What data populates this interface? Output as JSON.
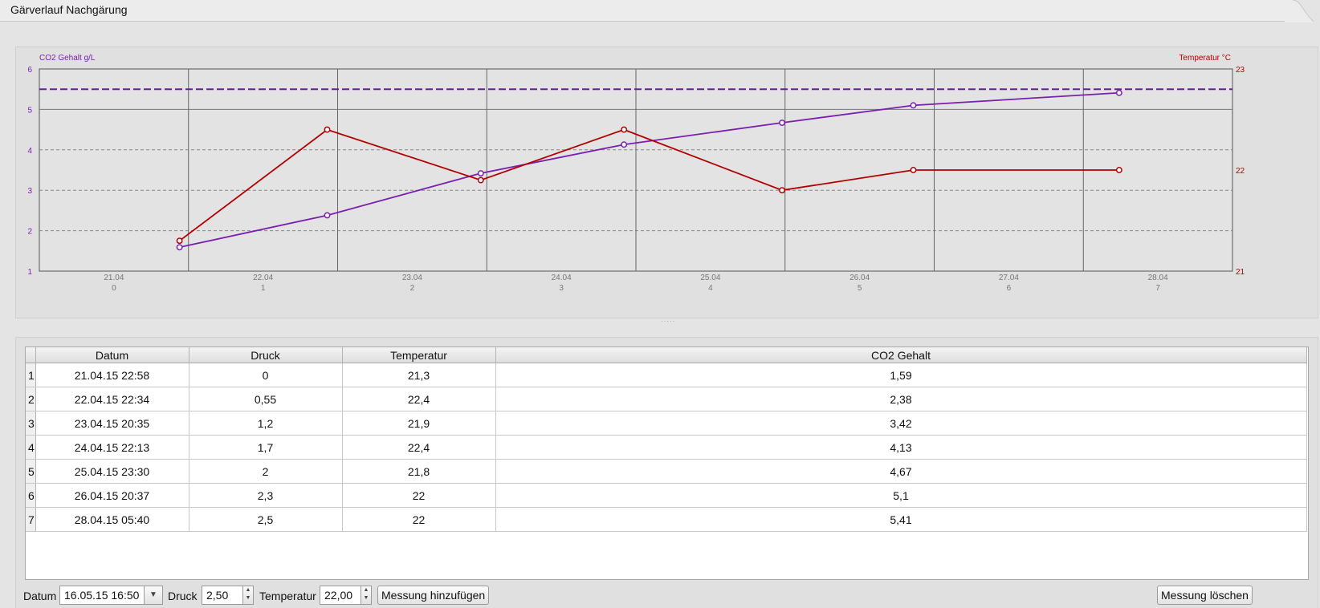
{
  "tab": {
    "title": "Gärverlauf Nachgärung"
  },
  "chart_data": {
    "type": "line",
    "ylabel": "CO2 Gehalt g/L",
    "y2label": "Temperatur °C",
    "ylim": [
      1,
      6
    ],
    "y2lim": [
      21,
      23
    ],
    "yticks": [
      "1",
      "2",
      "3",
      "4",
      "5",
      "6"
    ],
    "y2ticks": [
      "21",
      "22",
      "23"
    ],
    "x_date_labels": [
      "21.04",
      "22.04",
      "23.04",
      "24.04",
      "25.04",
      "26.04",
      "27.04",
      "28.04"
    ],
    "x_day_labels": [
      "0",
      "1",
      "2",
      "3",
      "4",
      "5",
      "6",
      "7"
    ],
    "xlim": [
      0,
      8
    ],
    "target_line": 5.5,
    "grid": true,
    "colors": {
      "co2": "#7a1fb0",
      "temp": "#b30000",
      "target": "#6a1aa8"
    },
    "series": [
      {
        "axis": "left",
        "color": "#7a1fb0",
        "x": [
          0.94,
          1.93,
          2.96,
          3.92,
          4.98,
          5.86,
          7.24
        ],
        "values": [
          1.59,
          2.38,
          3.42,
          4.13,
          4.67,
          5.1,
          5.41
        ]
      },
      {
        "axis": "right",
        "color": "#b30000",
        "x": [
          0.94,
          1.93,
          2.96,
          3.92,
          4.98,
          5.86,
          7.24
        ],
        "values": [
          21.3,
          22.4,
          21.9,
          22.4,
          21.8,
          22.0,
          22.0
        ]
      }
    ]
  },
  "table": {
    "columns": [
      "Datum",
      "Druck",
      "Temperatur",
      "CO2 Gehalt"
    ],
    "rows": [
      [
        "1",
        "21.04.15 22:58",
        "0",
        "21,3",
        "1,59"
      ],
      [
        "2",
        "22.04.15 22:34",
        "0,55",
        "22,4",
        "2,38"
      ],
      [
        "3",
        "23.04.15 20:35",
        "1,2",
        "21,9",
        "3,42"
      ],
      [
        "4",
        "24.04.15 22:13",
        "1,7",
        "22,4",
        "4,13"
      ],
      [
        "5",
        "25.04.15 23:30",
        "2",
        "21,8",
        "4,67"
      ],
      [
        "6",
        "26.04.15 20:37",
        "2,3",
        "22",
        "5,1"
      ],
      [
        "7",
        "28.04.15 05:40",
        "2,5",
        "22",
        "5,41"
      ]
    ]
  },
  "controls": {
    "datum_label": "Datum",
    "datum_value": "16.05.15 16:50",
    "druck_label": "Druck",
    "druck_value": "2,50",
    "temp_label": "Temperatur",
    "temp_value": "22,00",
    "add_button": "Messung hinzufügen",
    "delete_button": "Messung löschen"
  }
}
